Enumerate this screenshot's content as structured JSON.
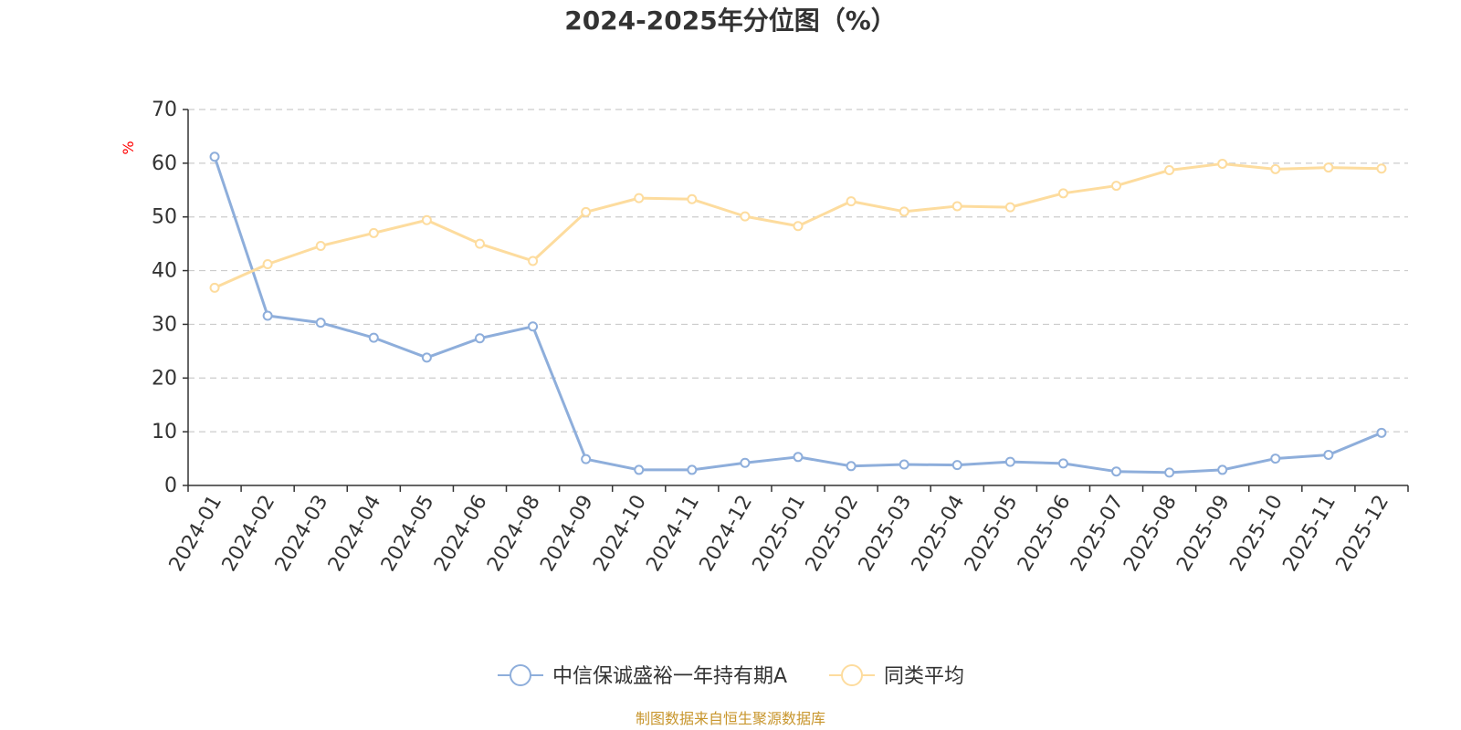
{
  "chart_data": {
    "type": "line",
    "title": "2024-2025年分位图（%）",
    "xlabel": "",
    "ylabel": "%",
    "ylim": [
      0,
      70
    ],
    "yticks": [
      0,
      10,
      20,
      30,
      40,
      50,
      60,
      70
    ],
    "grid": true,
    "legend_position": "bottom-center",
    "categories": [
      "2024-01",
      "2024-02",
      "2024-03",
      "2024-04",
      "2024-05",
      "2024-06",
      "2024-08",
      "2024-09",
      "2024-10",
      "2024-11",
      "2024-12",
      "2025-01",
      "2025-02",
      "2025-03",
      "2025-04",
      "2025-05",
      "2025-06",
      "2025-07",
      "2025-08",
      "2025-09",
      "2025-10",
      "2025-11",
      "2025-12"
    ],
    "series": [
      {
        "name": "中信保诚盛裕一年持有期A",
        "color": "#8eaedb",
        "values": [
          61.2,
          31.6,
          30.3,
          27.5,
          23.8,
          27.4,
          29.6,
          4.9,
          2.9,
          2.9,
          4.2,
          5.3,
          3.6,
          3.9,
          3.8,
          4.4,
          4.1,
          2.6,
          2.4,
          2.9,
          5.0,
          5.7,
          9.8
        ]
      },
      {
        "name": "同类平均",
        "color": "#fddc9e",
        "values": [
          36.8,
          41.2,
          44.6,
          47.0,
          49.4,
          45.0,
          41.8,
          50.9,
          53.5,
          53.3,
          50.1,
          48.3,
          52.9,
          51.0,
          52.0,
          51.8,
          54.4,
          55.8,
          58.7,
          59.9,
          58.9,
          59.2,
          59.0
        ]
      }
    ],
    "source_text": "制图数据来自恒生聚源数据库"
  }
}
